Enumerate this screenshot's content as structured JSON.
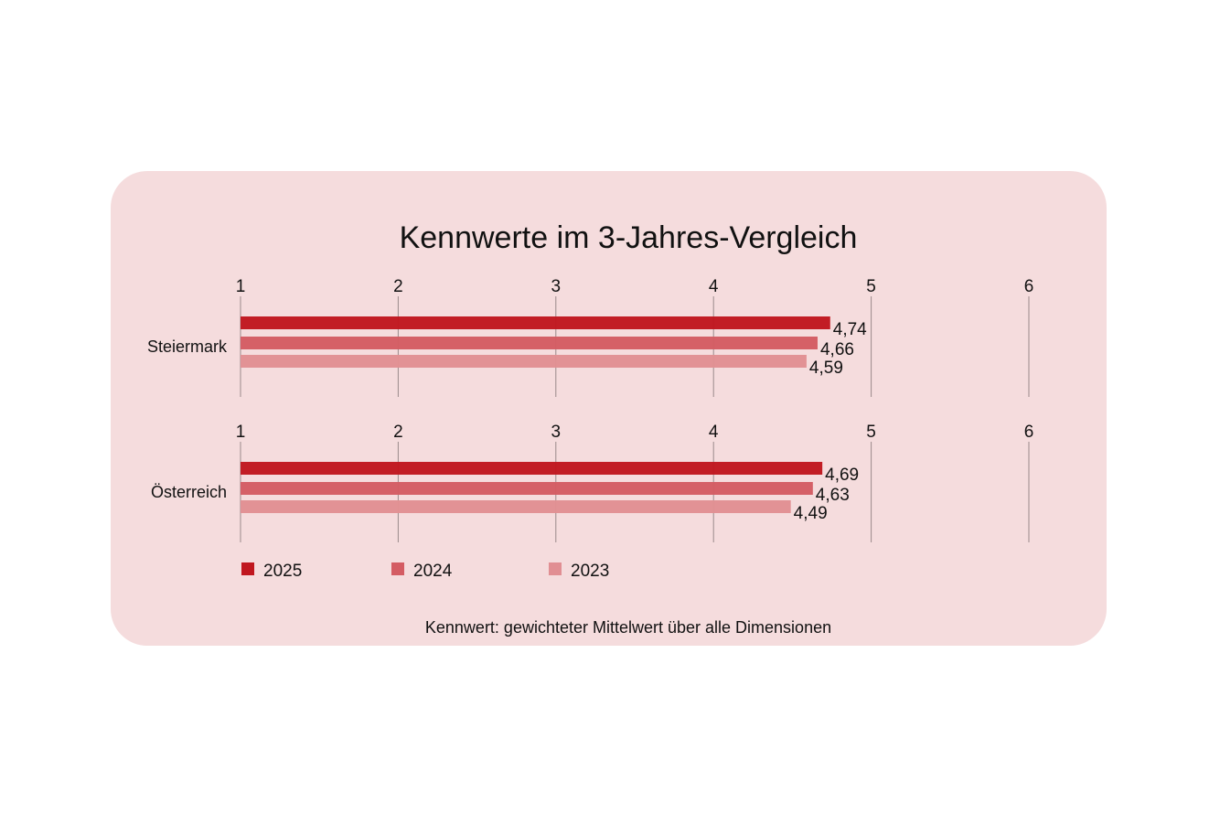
{
  "chart_data": {
    "type": "bar",
    "orientation": "horizontal",
    "title": "Kennwerte im 3-Jahres-Vergleich",
    "footnote": "Kennwert: gewichteter Mittelwert über alle Dimensionen",
    "categories": [
      "Steiermark",
      "Österreich"
    ],
    "xlim": [
      1,
      6
    ],
    "ticks": [
      "1",
      "2",
      "3",
      "4",
      "5",
      "6"
    ],
    "grid": true,
    "legend_position": "bottom-left",
    "series": [
      {
        "name": "2025",
        "values": [
          4.74,
          4.69
        ],
        "labels": [
          "4,74",
          "4,69"
        ],
        "color": "#c0171f"
      },
      {
        "name": "2024",
        "values": [
          4.66,
          4.63
        ],
        "labels": [
          "4,66",
          "4,63"
        ],
        "color": "#d45c63"
      },
      {
        "name": "2023",
        "values": [
          4.59,
          4.49
        ],
        "labels": [
          "4,59",
          "4,49"
        ],
        "color": "#e18f93"
      }
    ],
    "background_color": "#f5dcdd"
  }
}
